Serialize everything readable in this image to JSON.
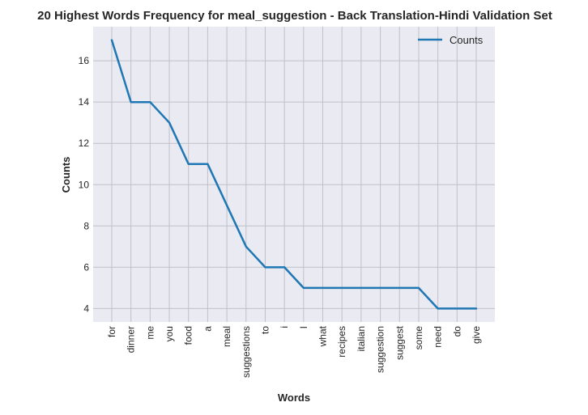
{
  "chart_data": {
    "type": "line",
    "title": "20 Highest Words Frequency for meal_suggestion - Back Translation-Hindi Validation Set",
    "xlabel": "Words",
    "ylabel": "Counts",
    "categories": [
      "for",
      "dinner",
      "me",
      "you",
      "food",
      "a",
      "meal",
      "suggestions",
      "to",
      "i",
      "I",
      "what",
      "recipes",
      "italian",
      "suggestion",
      "suggest",
      "some",
      "need",
      "do",
      "give"
    ],
    "series": [
      {
        "name": "Counts",
        "values": [
          17,
          14,
          14,
          13,
          11,
          11,
          9,
          7,
          6,
          6,
          5,
          5,
          5,
          5,
          5,
          5,
          5,
          4,
          4,
          4
        ]
      }
    ],
    "ylim": [
      3.35,
      17.65
    ],
    "yticks": [
      4,
      6,
      8,
      10,
      12,
      14,
      16
    ],
    "grid": true,
    "legend": "top-right",
    "colors": {
      "line": "#1f77b4",
      "plot_background": "#eaeaf2",
      "grid": "#c0c0c8"
    }
  }
}
